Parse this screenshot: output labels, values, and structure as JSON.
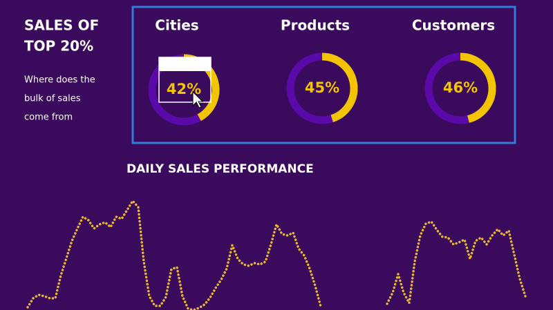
{
  "sidebar": {
    "title_lines": [
      "SALES OF",
      "TOP 20%"
    ],
    "description_lines": [
      "Where does the",
      "bulk of sales",
      "come from"
    ]
  },
  "chart_data": [
    {
      "type": "pie",
      "title": "Cities",
      "values": [
        42
      ],
      "value_labels": [
        "42%"
      ],
      "color": "#f2c500",
      "track_color": "#5a0aa8"
    },
    {
      "type": "pie",
      "title": "Products",
      "values": [
        45
      ],
      "value_labels": [
        "45%"
      ],
      "color": "#f2c500",
      "track_color": "#5a0aa8"
    },
    {
      "type": "pie",
      "title": "Customers",
      "values": [
        46
      ],
      "value_labels": [
        "46%"
      ],
      "color": "#f2c500",
      "track_color": "#5a0aa8"
    },
    {
      "type": "line",
      "title": "DAILY SALES PERFORMANCE",
      "color": "#e9b830",
      "values": [
        4,
        17,
        22,
        20,
        17,
        17,
        50,
        75,
        100,
        118,
        135,
        130,
        118,
        124,
        127,
        120,
        135,
        132,
        145,
        158,
        149,
        70,
        20,
        6,
        6,
        19,
        59,
        62,
        20,
        2,
        0,
        3,
        8,
        18,
        32,
        44,
        60,
        94,
        74,
        66,
        64,
        68,
        66,
        70,
        95,
        124,
        110,
        108,
        112,
        89,
        79,
        60,
        35,
        5,
        null,
        null,
        null,
        null,
        null,
        null,
        null,
        null,
        null,
        null,
        null,
        9,
        25,
        52,
        25,
        10,
        70,
        108,
        125,
        128,
        116,
        106,
        105,
        95,
        98,
        102,
        74,
        100,
        105,
        95,
        108,
        117,
        108,
        115,
        80,
        45,
        20
      ]
    }
  ]
}
